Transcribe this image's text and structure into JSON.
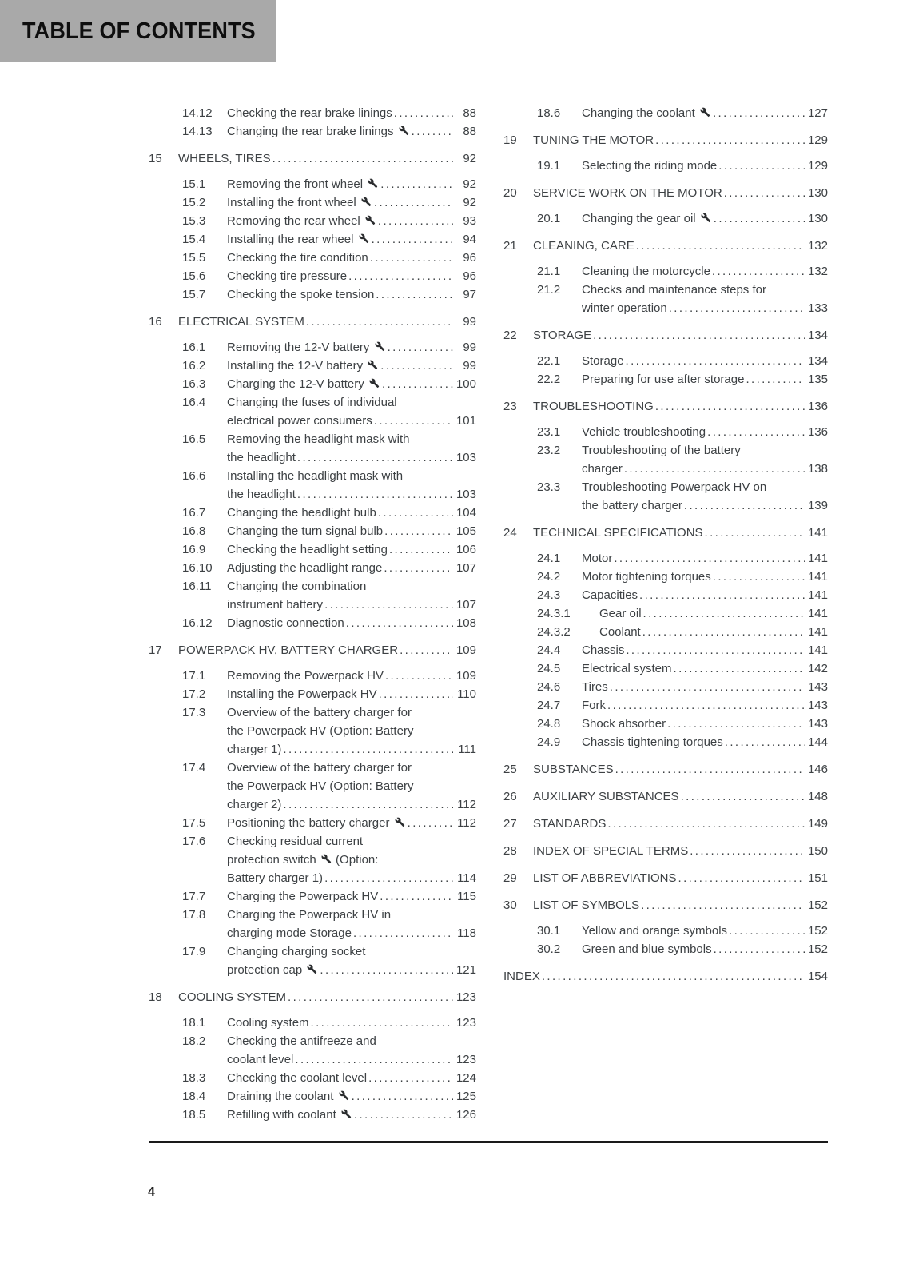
{
  "header": {
    "title": "TABLE OF CONTENTS"
  },
  "footer": {
    "page_number": "4"
  },
  "colors": {
    "header_bg": "#a9a9a9",
    "text": "#3d4144",
    "title": "#0e0e0e",
    "rule": "#1a1a1a"
  },
  "icons": {
    "wrench_token": "[w]",
    "wrench_name": "wrench-icon"
  },
  "toc": {
    "columns": [
      {
        "side": "left",
        "entries": [
          {
            "level": "sub",
            "num": "14.12",
            "lines": [
              "Checking the rear brake linings"
            ],
            "page": "88"
          },
          {
            "level": "sub",
            "num": "14.13",
            "lines": [
              "Changing the rear brake linings [w]"
            ],
            "page": "88"
          },
          {
            "level": "chapter",
            "num": "15",
            "lines": [
              "WHEELS, TIRES"
            ],
            "page": "92"
          },
          {
            "level": "sub",
            "num": "15.1",
            "lines": [
              "Removing the front wheel [w]"
            ],
            "page": "92"
          },
          {
            "level": "sub",
            "num": "15.2",
            "lines": [
              "Installing the front wheel [w]"
            ],
            "page": "92"
          },
          {
            "level": "sub",
            "num": "15.3",
            "lines": [
              "Removing the rear wheel [w]"
            ],
            "page": "93"
          },
          {
            "level": "sub",
            "num": "15.4",
            "lines": [
              "Installing the rear wheel [w]"
            ],
            "page": "94"
          },
          {
            "level": "sub",
            "num": "15.5",
            "lines": [
              "Checking the tire condition"
            ],
            "page": "96"
          },
          {
            "level": "sub",
            "num": "15.6",
            "lines": [
              "Checking tire pressure"
            ],
            "page": "96"
          },
          {
            "level": "sub",
            "num": "15.7",
            "lines": [
              "Checking the spoke tension"
            ],
            "page": "97"
          },
          {
            "level": "chapter",
            "num": "16",
            "lines": [
              "ELECTRICAL SYSTEM"
            ],
            "page": "99"
          },
          {
            "level": "sub",
            "num": "16.1",
            "lines": [
              "Removing the 12-V battery [w]"
            ],
            "page": "99"
          },
          {
            "level": "sub",
            "num": "16.2",
            "lines": [
              "Installing the 12-V battery [w]"
            ],
            "page": "99"
          },
          {
            "level": "sub",
            "num": "16.3",
            "lines": [
              "Charging the 12-V battery [w]"
            ],
            "page": "100"
          },
          {
            "level": "sub",
            "num": "16.4",
            "lines": [
              "Changing the fuses of individual",
              "electrical power consumers"
            ],
            "page": "101"
          },
          {
            "level": "sub",
            "num": "16.5",
            "lines": [
              "Removing the headlight mask with",
              "the headlight"
            ],
            "page": "103"
          },
          {
            "level": "sub",
            "num": "16.6",
            "lines": [
              "Installing the headlight mask with",
              "the headlight"
            ],
            "page": "103"
          },
          {
            "level": "sub",
            "num": "16.7",
            "lines": [
              "Changing the headlight bulb"
            ],
            "page": "104"
          },
          {
            "level": "sub",
            "num": "16.8",
            "lines": [
              "Changing the turn signal bulb"
            ],
            "page": "105"
          },
          {
            "level": "sub",
            "num": "16.9",
            "lines": [
              "Checking the headlight setting"
            ],
            "page": "106"
          },
          {
            "level": "sub",
            "num": "16.10",
            "lines": [
              "Adjusting the headlight range"
            ],
            "page": "107"
          },
          {
            "level": "sub",
            "num": "16.11",
            "lines": [
              "Changing the combination",
              "instrument battery"
            ],
            "page": "107"
          },
          {
            "level": "sub",
            "num": "16.12",
            "lines": [
              "Diagnostic connection"
            ],
            "page": "108"
          },
          {
            "level": "chapter",
            "num": "17",
            "lines": [
              "POWERPACK HV, BATTERY CHARGER"
            ],
            "page": "109"
          },
          {
            "level": "sub",
            "num": "17.1",
            "lines": [
              "Removing the Powerpack HV"
            ],
            "page": "109"
          },
          {
            "level": "sub",
            "num": "17.2",
            "lines": [
              "Installing the Powerpack HV"
            ],
            "page": "110"
          },
          {
            "level": "sub",
            "num": "17.3",
            "lines": [
              "Overview of the battery charger for",
              "the Powerpack HV (Option: Battery",
              "charger 1)"
            ],
            "page": "111"
          },
          {
            "level": "sub",
            "num": "17.4",
            "lines": [
              "Overview of the battery charger for",
              "the Powerpack HV (Option: Battery",
              "charger 2)"
            ],
            "page": "112"
          },
          {
            "level": "sub",
            "num": "17.5",
            "lines": [
              "Positioning the battery charger [w]"
            ],
            "page": "112"
          },
          {
            "level": "sub",
            "num": "17.6",
            "lines": [
              "Checking residual current",
              "protection switch [w] (Option:",
              "Battery charger 1)"
            ],
            "page": "114"
          },
          {
            "level": "sub",
            "num": "17.7",
            "lines": [
              "Charging the Powerpack HV"
            ],
            "page": "115"
          },
          {
            "level": "sub",
            "num": "17.8",
            "lines": [
              "Charging the Powerpack HV in",
              "charging mode Storage"
            ],
            "page": "118"
          },
          {
            "level": "sub",
            "num": "17.9",
            "lines": [
              "Changing charging socket",
              "protection cap [w]"
            ],
            "page": "121"
          },
          {
            "level": "chapter",
            "num": "18",
            "lines": [
              "COOLING SYSTEM"
            ],
            "page": "123"
          },
          {
            "level": "sub",
            "num": "18.1",
            "lines": [
              "Cooling system"
            ],
            "page": "123"
          },
          {
            "level": "sub",
            "num": "18.2",
            "lines": [
              "Checking the antifreeze and",
              "coolant level"
            ],
            "page": "123"
          },
          {
            "level": "sub",
            "num": "18.3",
            "lines": [
              "Checking the coolant level"
            ],
            "page": "124"
          },
          {
            "level": "sub",
            "num": "18.4",
            "lines": [
              "Draining the coolant [w]"
            ],
            "page": "125"
          },
          {
            "level": "sub",
            "num": "18.5",
            "lines": [
              "Refilling with coolant [w]"
            ],
            "page": "126"
          }
        ]
      },
      {
        "side": "right",
        "entries": [
          {
            "level": "sub",
            "num": "18.6",
            "lines": [
              "Changing the coolant [w]"
            ],
            "page": "127"
          },
          {
            "level": "chapter",
            "num": "19",
            "lines": [
              "TUNING THE MOTOR"
            ],
            "page": "129"
          },
          {
            "level": "sub",
            "num": "19.1",
            "lines": [
              "Selecting the riding mode"
            ],
            "page": "129"
          },
          {
            "level": "chapter",
            "num": "20",
            "lines": [
              "SERVICE WORK ON THE MOTOR"
            ],
            "page": "130"
          },
          {
            "level": "sub",
            "num": "20.1",
            "lines": [
              "Changing the gear oil [w]"
            ],
            "page": "130"
          },
          {
            "level": "chapter",
            "num": "21",
            "lines": [
              "CLEANING, CARE"
            ],
            "page": "132"
          },
          {
            "level": "sub",
            "num": "21.1",
            "lines": [
              "Cleaning the motorcycle"
            ],
            "page": "132"
          },
          {
            "level": "sub",
            "num": "21.2",
            "lines": [
              "Checks and maintenance steps for",
              "winter operation"
            ],
            "page": "133"
          },
          {
            "level": "chapter",
            "num": "22",
            "lines": [
              "STORAGE"
            ],
            "page": "134"
          },
          {
            "level": "sub",
            "num": "22.1",
            "lines": [
              "Storage"
            ],
            "page": "134"
          },
          {
            "level": "sub",
            "num": "22.2",
            "lines": [
              "Preparing for use after storage"
            ],
            "page": "135"
          },
          {
            "level": "chapter",
            "num": "23",
            "lines": [
              "TROUBLESHOOTING"
            ],
            "page": "136"
          },
          {
            "level": "sub",
            "num": "23.1",
            "lines": [
              "Vehicle troubleshooting"
            ],
            "page": "136"
          },
          {
            "level": "sub",
            "num": "23.2",
            "lines": [
              "Troubleshooting of the battery",
              "charger"
            ],
            "page": "138"
          },
          {
            "level": "sub",
            "num": "23.3",
            "lines": [
              "Troubleshooting Powerpack HV on",
              "the battery charger"
            ],
            "page": "139"
          },
          {
            "level": "chapter",
            "num": "24",
            "lines": [
              "TECHNICAL SPECIFICATIONS"
            ],
            "page": "141"
          },
          {
            "level": "sub",
            "num": "24.1",
            "lines": [
              "Motor"
            ],
            "page": "141"
          },
          {
            "level": "sub",
            "num": "24.2",
            "lines": [
              "Motor tightening torques"
            ],
            "page": "141"
          },
          {
            "level": "sub",
            "num": "24.3",
            "lines": [
              "Capacities"
            ],
            "page": "141"
          },
          {
            "level": "subsub",
            "num": "24.3.1",
            "lines": [
              "Gear oil"
            ],
            "page": "141"
          },
          {
            "level": "subsub",
            "num": "24.3.2",
            "lines": [
              "Coolant"
            ],
            "page": "141"
          },
          {
            "level": "sub",
            "num": "24.4",
            "lines": [
              "Chassis"
            ],
            "page": "141"
          },
          {
            "level": "sub",
            "num": "24.5",
            "lines": [
              "Electrical system"
            ],
            "page": "142"
          },
          {
            "level": "sub",
            "num": "24.6",
            "lines": [
              "Tires"
            ],
            "page": "143"
          },
          {
            "level": "sub",
            "num": "24.7",
            "lines": [
              "Fork"
            ],
            "page": "143"
          },
          {
            "level": "sub",
            "num": "24.8",
            "lines": [
              "Shock absorber"
            ],
            "page": "143"
          },
          {
            "level": "sub",
            "num": "24.9",
            "lines": [
              "Chassis tightening torques"
            ],
            "page": "144"
          },
          {
            "level": "chapter",
            "num": "25",
            "lines": [
              "SUBSTANCES"
            ],
            "page": "146"
          },
          {
            "level": "chapter",
            "num": "26",
            "lines": [
              "AUXILIARY SUBSTANCES"
            ],
            "page": "148"
          },
          {
            "level": "chapter",
            "num": "27",
            "lines": [
              "STANDARDS"
            ],
            "page": "149"
          },
          {
            "level": "chapter",
            "num": "28",
            "lines": [
              "INDEX OF SPECIAL TERMS"
            ],
            "page": "150"
          },
          {
            "level": "chapter",
            "num": "29",
            "lines": [
              "LIST OF ABBREVIATIONS"
            ],
            "page": "151"
          },
          {
            "level": "chapter",
            "num": "30",
            "lines": [
              "LIST OF SYMBOLS"
            ],
            "page": "152"
          },
          {
            "level": "sub",
            "num": "30.1",
            "lines": [
              "Yellow and orange symbols"
            ],
            "page": "152"
          },
          {
            "level": "sub",
            "num": "30.2",
            "lines": [
              "Green and blue symbols"
            ],
            "page": "152"
          },
          {
            "level": "chapter",
            "num": "",
            "lines": [
              "INDEX"
            ],
            "page": "154"
          }
        ]
      }
    ]
  }
}
